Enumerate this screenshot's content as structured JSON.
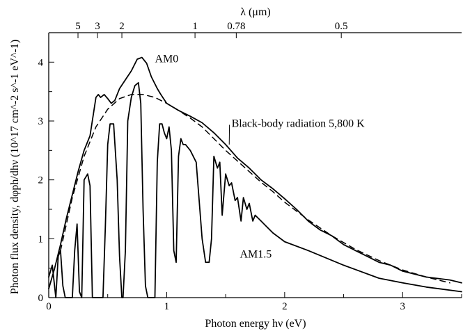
{
  "chart_data": {
    "type": "line",
    "title": "",
    "xlabel": "Photon energy hν (eV)",
    "ylabel": "Photon flux density, dφph/dhν (10^17 cm^-2 s^-1 eV^-1)",
    "top_axis_label": "λ (μm)",
    "xlim": [
      0,
      3.5
    ],
    "ylim": [
      0,
      4.5
    ],
    "grid": false,
    "x_ticks": [
      {
        "value": 0,
        "label": "0"
      },
      {
        "value": 1,
        "label": "1"
      },
      {
        "value": 2,
        "label": "2"
      },
      {
        "value": 3,
        "label": "3"
      }
    ],
    "y_ticks": [
      {
        "value": 0,
        "label": "0"
      },
      {
        "value": 1,
        "label": "1"
      },
      {
        "value": 2,
        "label": "2"
      },
      {
        "value": 3,
        "label": "3"
      },
      {
        "value": 4,
        "label": "4"
      }
    ],
    "top_ticks": [
      {
        "wavelength_um": 5,
        "label": "5"
      },
      {
        "wavelength_um": 3,
        "label": "3"
      },
      {
        "wavelength_um": 2,
        "label": "2"
      },
      {
        "wavelength_um": 1,
        "label": "1"
      },
      {
        "wavelength_um": 0.78,
        "label": "0.78"
      },
      {
        "wavelength_um": 0.5,
        "label": "0.5"
      }
    ],
    "series": [
      {
        "name": "AM0",
        "style": "solid",
        "label_at": [
          0.9,
          4.0
        ],
        "x": [
          0.0,
          0.05,
          0.1,
          0.15,
          0.2,
          0.25,
          0.3,
          0.35,
          0.4,
          0.42,
          0.44,
          0.47,
          0.5,
          0.53,
          0.56,
          0.6,
          0.65,
          0.7,
          0.75,
          0.79,
          0.83,
          0.87,
          0.92,
          0.95,
          1.0,
          1.1,
          1.2,
          1.3,
          1.4,
          1.5,
          1.6,
          1.7,
          1.8,
          1.9,
          2.0,
          2.1,
          2.2,
          2.3,
          2.4,
          2.5,
          2.6,
          2.7,
          2.8,
          2.9,
          3.0,
          3.2,
          3.4,
          3.5
        ],
        "y": [
          0.15,
          0.5,
          0.9,
          1.35,
          1.75,
          2.15,
          2.5,
          2.75,
          3.4,
          3.45,
          3.4,
          3.45,
          3.38,
          3.3,
          3.35,
          3.55,
          3.7,
          3.85,
          4.05,
          4.08,
          3.98,
          3.75,
          3.55,
          3.45,
          3.3,
          3.18,
          3.08,
          2.97,
          2.8,
          2.6,
          2.37,
          2.2,
          2.0,
          1.85,
          1.68,
          1.5,
          1.3,
          1.15,
          1.05,
          0.9,
          0.8,
          0.7,
          0.6,
          0.55,
          0.45,
          0.35,
          0.3,
          0.25
        ]
      },
      {
        "name": "AM1.5",
        "style": "solid",
        "label_at": [
          1.62,
          0.68
        ],
        "x": [
          0.0,
          0.03,
          0.06,
          0.08,
          0.1,
          0.12,
          0.14,
          0.16,
          0.18,
          0.2,
          0.22,
          0.24,
          0.26,
          0.28,
          0.3,
          0.33,
          0.35,
          0.37,
          0.4,
          0.43,
          0.46,
          0.48,
          0.5,
          0.52,
          0.55,
          0.58,
          0.6,
          0.62,
          0.63,
          0.65,
          0.67,
          0.7,
          0.73,
          0.76,
          0.78,
          0.8,
          0.82,
          0.84,
          0.86,
          0.88,
          0.9,
          0.92,
          0.94,
          0.96,
          0.98,
          1.0,
          1.02,
          1.04,
          1.06,
          1.08,
          1.1,
          1.12,
          1.14,
          1.16,
          1.2,
          1.25,
          1.3,
          1.33,
          1.36,
          1.38,
          1.4,
          1.43,
          1.45,
          1.47,
          1.5,
          1.53,
          1.55,
          1.58,
          1.6,
          1.63,
          1.65,
          1.68,
          1.7,
          1.73,
          1.75,
          1.8,
          1.85,
          1.9,
          2.0,
          2.2,
          2.5,
          2.8,
          3.0,
          3.2,
          3.5
        ],
        "y": [
          0.35,
          0.55,
          0.0,
          0.7,
          0.8,
          0.2,
          0.0,
          0.0,
          0.0,
          0.0,
          0.8,
          1.25,
          0.1,
          0.0,
          2.0,
          2.1,
          1.9,
          0.0,
          0.0,
          0.0,
          0.0,
          1.2,
          2.6,
          2.95,
          2.95,
          2.0,
          0.7,
          0.0,
          0.0,
          0.8,
          3.0,
          3.4,
          3.6,
          3.65,
          3.3,
          1.5,
          0.2,
          0.0,
          0.0,
          0.0,
          0.0,
          2.3,
          2.95,
          2.95,
          2.8,
          2.7,
          2.9,
          2.5,
          0.8,
          0.6,
          2.4,
          2.7,
          2.6,
          2.6,
          2.5,
          2.3,
          1.0,
          0.6,
          0.6,
          1.0,
          2.4,
          2.2,
          2.3,
          1.4,
          2.1,
          1.9,
          1.95,
          1.65,
          1.7,
          1.3,
          1.7,
          1.5,
          1.6,
          1.3,
          1.4,
          1.3,
          1.2,
          1.1,
          0.95,
          0.8,
          0.55,
          0.33,
          0.25,
          0.18,
          0.1
        ]
      },
      {
        "name": "Black-body radiation 5,800 K",
        "style": "dashed",
        "label_at": [
          1.55,
          2.9
        ],
        "label_pointer": [
          1.53,
          2.6
        ],
        "x": [
          0.1,
          0.2,
          0.3,
          0.4,
          0.5,
          0.6,
          0.7,
          0.8,
          0.9,
          1.0,
          1.1,
          1.2,
          1.3,
          1.4,
          1.5,
          1.6,
          1.7,
          1.8,
          1.9,
          2.0,
          2.2,
          2.4,
          2.6,
          2.8,
          3.0,
          3.2,
          3.4
        ],
        "y": [
          0.8,
          1.7,
          2.4,
          2.9,
          3.2,
          3.38,
          3.45,
          3.45,
          3.4,
          3.3,
          3.18,
          3.05,
          2.9,
          2.7,
          2.5,
          2.32,
          2.14,
          1.96,
          1.8,
          1.62,
          1.32,
          1.05,
          0.82,
          0.63,
          0.47,
          0.35,
          0.25
        ]
      }
    ]
  }
}
